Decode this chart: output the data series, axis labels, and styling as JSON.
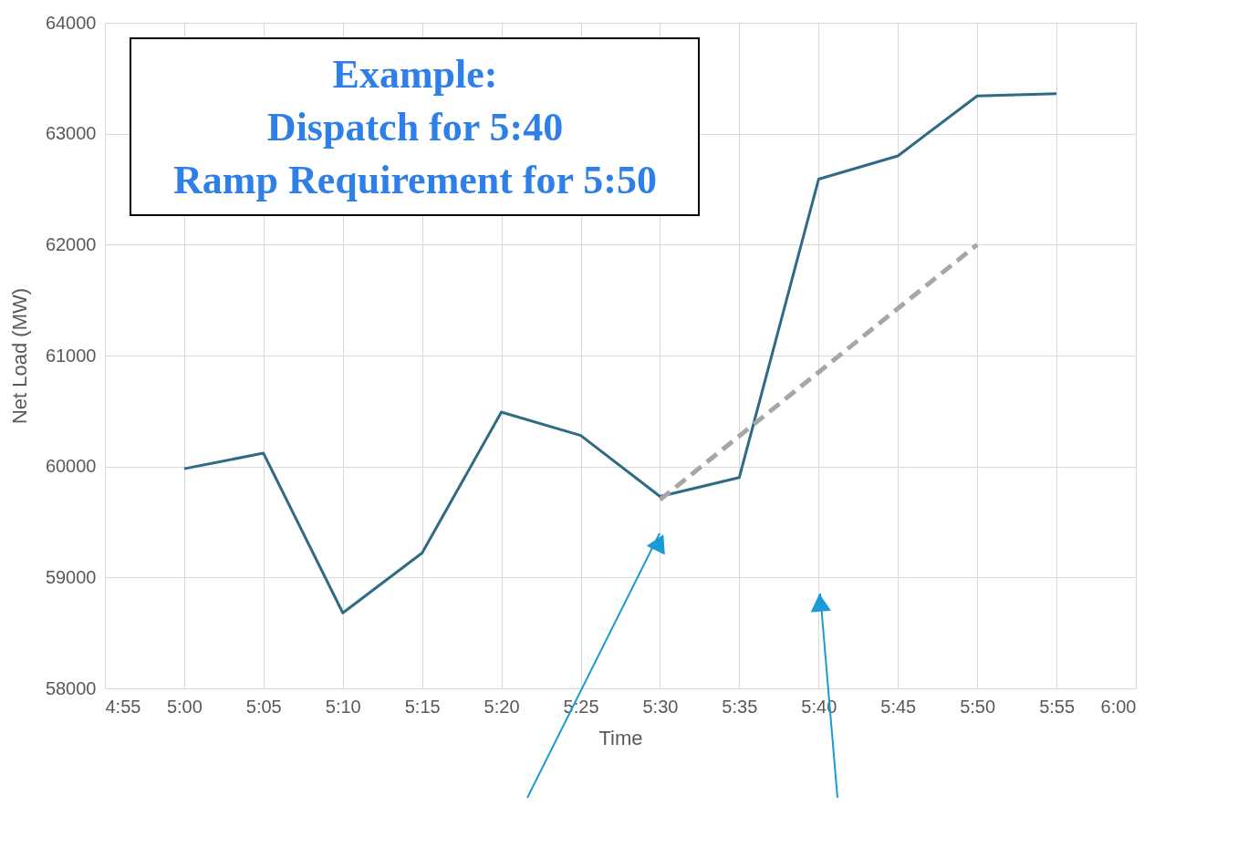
{
  "chart_data": {
    "type": "line",
    "xlabel": "Time",
    "ylabel": "Net Load (MW)",
    "annotations": [
      "Example:\nDispatch for 5:40\nRamp Requirement for 5:50"
    ],
    "xlim": [
      4.9167,
      6.0
    ],
    "xticks": [
      {
        "value": 4.9167,
        "label": "4:55"
      },
      {
        "value": 5.0,
        "label": "5:00"
      },
      {
        "value": 5.0833,
        "label": "5:05"
      },
      {
        "value": 5.1667,
        "label": "5:10"
      },
      {
        "value": 5.25,
        "label": "5:15"
      },
      {
        "value": 5.3333,
        "label": "5:20"
      },
      {
        "value": 5.4167,
        "label": "5:25"
      },
      {
        "value": 5.5,
        "label": "5:30"
      },
      {
        "value": 5.5833,
        "label": "5:35"
      },
      {
        "value": 5.6667,
        "label": "5:40"
      },
      {
        "value": 5.75,
        "label": "5:45"
      },
      {
        "value": 5.8333,
        "label": "5:50"
      },
      {
        "value": 5.9167,
        "label": "5:55"
      },
      {
        "value": 6.0,
        "label": "6:00"
      }
    ],
    "ylim": [
      58000,
      64000
    ],
    "yticks": [
      58000,
      59000,
      60000,
      61000,
      62000,
      63000,
      64000
    ],
    "grid": true,
    "legend": false,
    "series": [
      {
        "color": "#2f6b84",
        "line_style": "solid",
        "x": [
          5.0,
          5.0833,
          5.1667,
          5.25,
          5.3333,
          5.4167,
          5.5,
          5.5833,
          5.6667,
          5.75,
          5.8333,
          5.9167
        ],
        "values": [
          59980,
          60120,
          58680,
          59220,
          60490,
          60280,
          59730,
          59900,
          62590,
          62800,
          63340,
          63360
        ]
      },
      {
        "type": "line",
        "color": "#a6a6a6",
        "line_style": "dashed",
        "x": [
          5.5,
          5.8333
        ],
        "values": [
          59700,
          62000
        ]
      }
    ]
  }
}
